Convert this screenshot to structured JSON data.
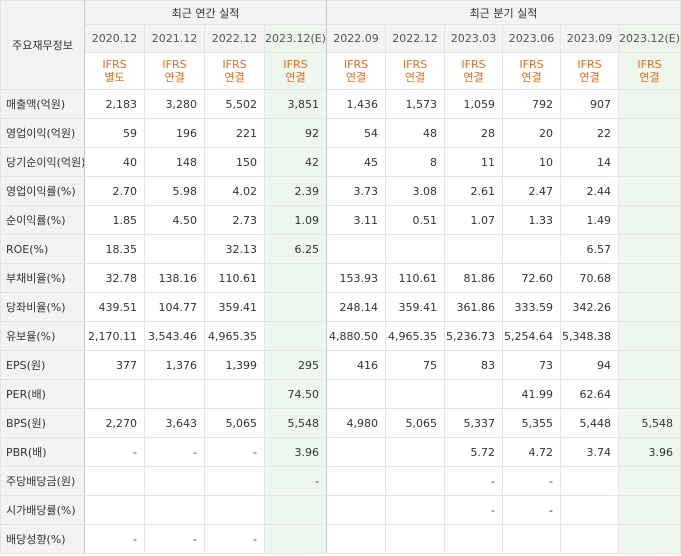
{
  "header": {
    "label": "주요재무정보",
    "group_annual": "최근 연간 실적",
    "group_quarterly": "최근 분기 실적",
    "periods": [
      "2020.12",
      "2021.12",
      "2022.12",
      "2023.12(E)",
      "2022.09",
      "2022.12",
      "2023.03",
      "2023.06",
      "2023.09",
      "2023.12(E)"
    ],
    "ifrs_top": [
      "IFRS",
      "IFRS",
      "IFRS",
      "IFRS",
      "IFRS",
      "IFRS",
      "IFRS",
      "IFRS",
      "IFRS",
      "IFRS"
    ],
    "ifrs_bottom": [
      "별도",
      "연결",
      "연결",
      "연결",
      "연결",
      "연결",
      "연결",
      "연결",
      "연결",
      "연결"
    ]
  },
  "rows": [
    {
      "label": "매출액(억원)",
      "values": [
        "2,183",
        "3,280",
        "5,502",
        "3,851",
        "1,436",
        "1,573",
        "1,059",
        "792",
        "907",
        ""
      ]
    },
    {
      "label": "영업이익(억원)",
      "values": [
        "59",
        "196",
        "221",
        "92",
        "54",
        "48",
        "28",
        "20",
        "22",
        ""
      ]
    },
    {
      "label": "당기순이익(억원)",
      "values": [
        "40",
        "148",
        "150",
        "42",
        "45",
        "8",
        "11",
        "10",
        "14",
        ""
      ]
    },
    {
      "label": "영업이익률(%)",
      "values": [
        "2.70",
        "5.98",
        "4.02",
        "2.39",
        "3.73",
        "3.08",
        "2.61",
        "2.47",
        "2.44",
        ""
      ]
    },
    {
      "label": "순이익률(%)",
      "values": [
        "1.85",
        "4.50",
        "2.73",
        "1.09",
        "3.11",
        "0.51",
        "1.07",
        "1.33",
        "1.49",
        ""
      ]
    },
    {
      "label": "ROE(%)",
      "values": [
        "18.35",
        "",
        "32.13",
        "6.25",
        "",
        "",
        "",
        "",
        "6.57",
        ""
      ]
    },
    {
      "label": "부채비율(%)",
      "values": [
        "32.78",
        "138.16",
        "110.61",
        "",
        "153.93",
        "110.61",
        "81.86",
        "72.60",
        "70.68",
        ""
      ]
    },
    {
      "label": "당좌비율(%)",
      "values": [
        "439.51",
        "104.77",
        "359.41",
        "",
        "248.14",
        "359.41",
        "361.86",
        "333.59",
        "342.26",
        ""
      ]
    },
    {
      "label": "유보율(%)",
      "values": [
        "2,170.11",
        "3,543.46",
        "4,965.35",
        "",
        "4,880.50",
        "4,965.35",
        "5,236.73",
        "5,254.64",
        "5,348.38",
        ""
      ]
    },
    {
      "label": "EPS(원)",
      "values": [
        "377",
        "1,376",
        "1,399",
        "295",
        "416",
        "75",
        "83",
        "73",
        "94",
        ""
      ]
    },
    {
      "label": "PER(배)",
      "values": [
        "",
        "",
        "",
        "74.50",
        "",
        "",
        "",
        "41.99",
        "62.64",
        ""
      ]
    },
    {
      "label": "BPS(원)",
      "values": [
        "2,270",
        "3,643",
        "5,065",
        "5,548",
        "4,980",
        "5,065",
        "5,337",
        "5,355",
        "5,448",
        "5,548"
      ]
    },
    {
      "label": "PBR(배)",
      "values": [
        "-",
        "-",
        "-",
        "3.96",
        "",
        "",
        "5.72",
        "4.72",
        "3.74",
        "3.96"
      ]
    },
    {
      "label": "주당배당금(원)",
      "values": [
        "",
        "",
        "",
        "-",
        "",
        "",
        "-",
        "-",
        "",
        ""
      ]
    },
    {
      "label": "시가배당률(%)",
      "values": [
        "",
        "",
        "",
        "",
        "",
        "",
        "-",
        "-",
        "",
        ""
      ]
    },
    {
      "label": "배당성향(%)",
      "values": [
        "-",
        "-",
        "-",
        "",
        "",
        "",
        "",
        "",
        "",
        ""
      ]
    }
  ]
}
